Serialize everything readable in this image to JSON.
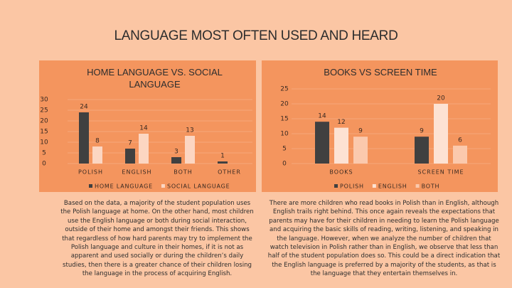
{
  "title": "LANGUAGE MOST OFTEN USED AND HEARD",
  "chart_data": [
    {
      "type": "bar",
      "title": "HOME LANGUAGE VS. SOCIAL LANGUAGE",
      "categories": [
        "POLISH",
        "ENGLISH",
        "BOTH",
        "OTHER"
      ],
      "series": [
        {
          "name": "HOME LANGUAGE",
          "color": "#404040",
          "values": [
            24,
            7,
            3,
            1
          ]
        },
        {
          "name": "SOCIAL LANGUAGE",
          "color": "#fcd6c2",
          "values": [
            8,
            14,
            13,
            null
          ]
        }
      ],
      "ylim": [
        0,
        30
      ],
      "yticks": [
        0,
        5,
        10,
        15,
        20,
        25,
        30
      ],
      "grid": true,
      "legend": "bottom"
    },
    {
      "type": "bar",
      "title": "BOOKS VS SCREEN TIME",
      "categories": [
        "BOOKS",
        "SCREEN TIME"
      ],
      "series": [
        {
          "name": "POLISH",
          "color": "#404040",
          "values": [
            14,
            9
          ]
        },
        {
          "name": "ENGLISH",
          "color": "#fde2d3",
          "values": [
            12,
            20
          ]
        },
        {
          "name": "BOTH",
          "color": "#fbc9ad",
          "values": [
            9,
            6
          ]
        }
      ],
      "ylim": [
        0,
        25
      ],
      "yticks": [
        0,
        5,
        10,
        15,
        20,
        25
      ],
      "grid": true,
      "legend": "bottom"
    }
  ],
  "paragraphs": [
    "Based on the data, a majority of the student population uses the Polish language at home. On the other hand, most children use the English language or both during social interaction, outside of their home and amongst their friends. This shows that regardless of how hard parents may try to implement the Polish language and culture in their homes, if it is not as apparent and used socially or during the children’s daily studies, then there is a greater chance of their children losing the language in the process of acquiring English.",
    "There are more children who read books in Polish than in English, although English trails right behind. This once again reveals the expectations that parents may have for their children in needing to learn the Polish language and acquiring the basic skills of reading, writing, listening, and speaking in the language. However, when we analyze the number of children that watch television in Polish rather than in English, we observe that less than half of the student population does so. This could be a direct indication that the English language is preferred by a majority of the students, as that is the language that they entertain themselves in."
  ]
}
